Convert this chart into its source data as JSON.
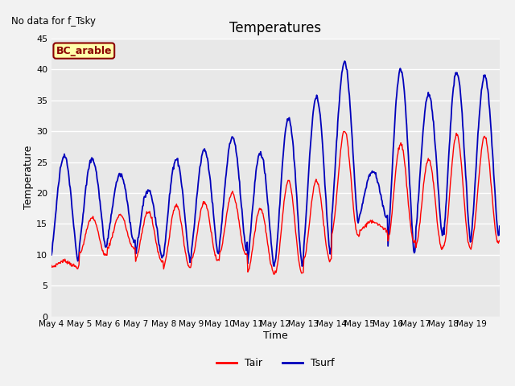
{
  "title": "Temperatures",
  "xlabel": "Time",
  "ylabel": "Temperature",
  "top_left_text": "No data for f_Tsky",
  "box_label": "BC_arable",
  "ylim": [
    0,
    45
  ],
  "yticks": [
    0,
    5,
    10,
    15,
    20,
    25,
    30,
    35,
    40,
    45
  ],
  "n_days": 16,
  "xtick_labels": [
    "May 4",
    "May 5",
    "May 6",
    "May 7",
    "May 8",
    "May 9",
    "May 10",
    "May 11",
    "May 12",
    "May 13",
    "May 14",
    "May 15",
    "May 16",
    "May 17",
    "May 18",
    "May 19"
  ],
  "tair_color": "#ff0000",
  "tsurf_color": "#0000bb",
  "plot_bg": "#e8e8e8",
  "legend_labels": [
    "Tair",
    "Tsurf"
  ],
  "pts_per_day": 48,
  "day_peaks_tsurf": [
    26,
    25.5,
    23,
    20.5,
    25.5,
    27,
    29,
    26.5,
    32,
    35.5,
    41,
    23.5,
    40,
    36,
    39.5,
    39
  ],
  "day_peaks_tair": [
    9,
    16,
    16.5,
    17,
    18,
    18.5,
    20,
    17.5,
    22,
    22,
    30,
    15.5,
    28,
    25.5,
    29.5,
    29
  ],
  "day_mins_tsurf": [
    9,
    11,
    12,
    9.5,
    9,
    10,
    11,
    8,
    8,
    10,
    15,
    16,
    10,
    13,
    12,
    13
  ],
  "day_mins_tair": [
    8,
    10,
    11,
    9,
    8,
    9,
    10,
    7,
    7,
    9,
    13,
    14,
    12,
    11,
    11,
    12
  ]
}
